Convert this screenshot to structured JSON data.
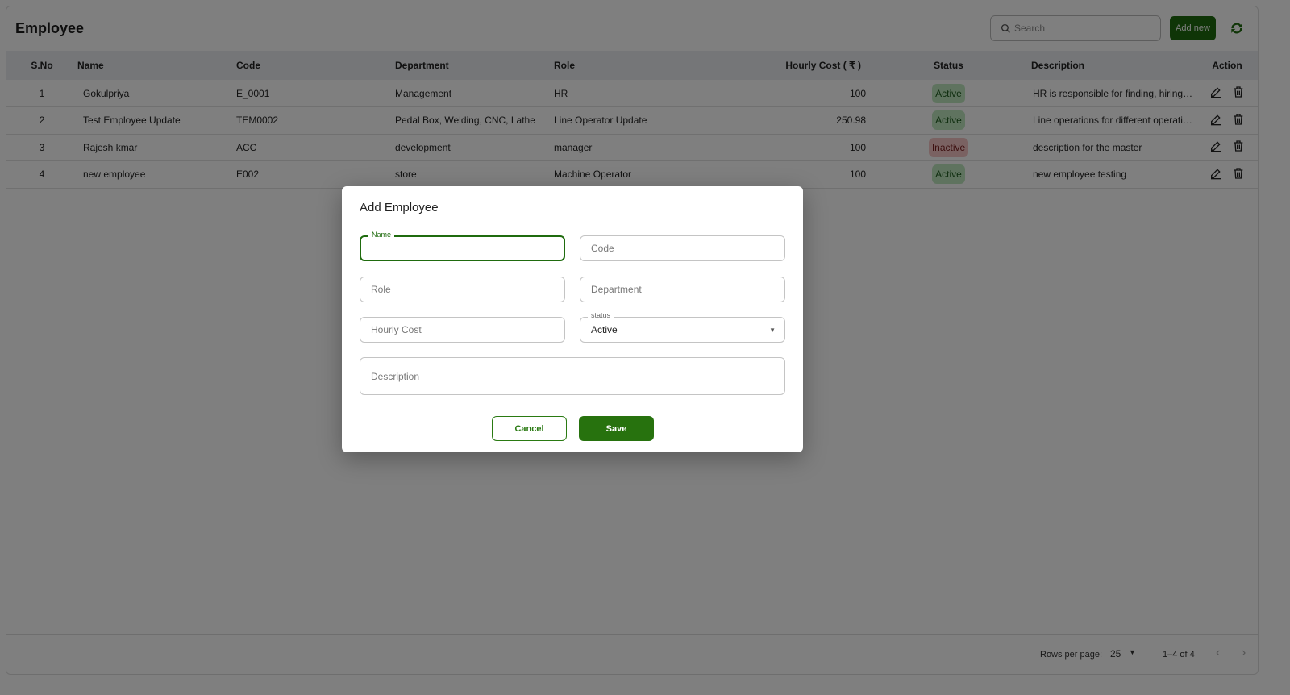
{
  "header": {
    "title": "Employee",
    "search_placeholder": "Search",
    "add_new": "Add new"
  },
  "table": {
    "columns": [
      "S.No",
      "Name",
      "Code",
      "Department",
      "Role",
      "Hourly Cost ( ₹ )",
      "Status",
      "Description",
      "Action"
    ],
    "rows": [
      {
        "sno": "1",
        "name": "Gokulpriya",
        "code": "E_0001",
        "department": "Management",
        "role": "HR",
        "cost": "100",
        "status": "Active",
        "description": "HR is responsible for finding, hiring…"
      },
      {
        "sno": "2",
        "name": "Test Employee Update",
        "code": "TEM0002",
        "department": "Pedal Box, Welding, CNC, Lathe",
        "role": "Line Operator Update",
        "cost": "250.98",
        "status": "Active",
        "description": "Line operations for different operati…"
      },
      {
        "sno": "3",
        "name": "Rajesh kmar",
        "code": "ACC",
        "department": "development",
        "role": "manager",
        "cost": "100",
        "status": "Inactive",
        "description": "description for the master"
      },
      {
        "sno": "4",
        "name": "new employee",
        "code": "E002",
        "department": "store",
        "role": "Machine Operator",
        "cost": "100",
        "status": "Active",
        "description": "new employee testing"
      }
    ]
  },
  "footer": {
    "rows_per_page_label": "Rows per page:",
    "rows_per_page": "25",
    "range": "1–4 of 4"
  },
  "modal": {
    "title": "Add Employee",
    "name_label": "Name",
    "name_value": "",
    "code": "Code",
    "role": "Role",
    "department": "Department",
    "hourly_cost": "Hourly Cost",
    "status_label": "status",
    "status_value": "Active",
    "description": "Description",
    "cancel": "Cancel",
    "save": "Save"
  },
  "colors": {
    "accent": "#1f6b0e",
    "active_bg": "#bfe6bf",
    "inactive_bg": "#f4c4c4"
  }
}
